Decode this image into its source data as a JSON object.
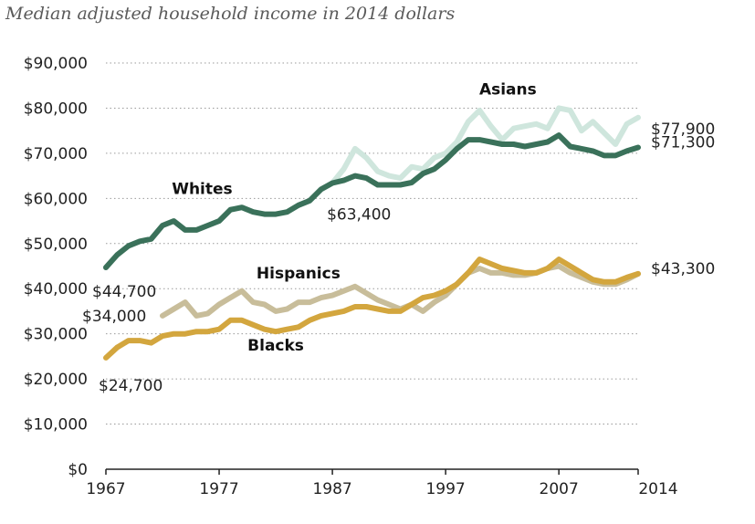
{
  "chart_data": {
    "type": "line",
    "title": "Median adjusted household income in 2014 dollars",
    "xlabel": "",
    "ylabel": "",
    "xlim": [
      1967,
      2014
    ],
    "ylim": [
      0,
      90000
    ],
    "x_ticks": [
      "1967",
      "1977",
      "1987",
      "1997",
      "2007",
      "2014"
    ],
    "y_ticks": [
      {
        "value": 0,
        "label": "$0"
      },
      {
        "value": 10000,
        "label": "$10,000"
      },
      {
        "value": 20000,
        "label": "$20,000"
      },
      {
        "value": 30000,
        "label": "$30,000"
      },
      {
        "value": 40000,
        "label": "$40,000"
      },
      {
        "value": 50000,
        "label": "$50,000"
      },
      {
        "value": 60000,
        "label": "$60,000"
      },
      {
        "value": 70000,
        "label": "$70,000"
      },
      {
        "value": 80000,
        "label": "$80,000"
      },
      {
        "value": 90000,
        "label": "$90,000"
      }
    ],
    "grid": true,
    "series": [
      {
        "name": "Asians",
        "color": "#cfe6dd",
        "points": [
          [
            1987,
            63400
          ],
          [
            1988,
            66500
          ],
          [
            1989,
            71000
          ],
          [
            1990,
            69000
          ],
          [
            1991,
            66000
          ],
          [
            1992,
            65000
          ],
          [
            1993,
            64500
          ],
          [
            1994,
            67000
          ],
          [
            1995,
            66500
          ],
          [
            1996,
            69000
          ],
          [
            1997,
            70000
          ],
          [
            1998,
            72500
          ],
          [
            1999,
            77000
          ],
          [
            2000,
            79500
          ],
          [
            2001,
            76000
          ],
          [
            2002,
            73000
          ],
          [
            2003,
            75500
          ],
          [
            2004,
            76000
          ],
          [
            2005,
            76500
          ],
          [
            2006,
            75500
          ],
          [
            2007,
            80000
          ],
          [
            2008,
            79500
          ],
          [
            2009,
            75000
          ],
          [
            2010,
            77000
          ],
          [
            2011,
            74500
          ],
          [
            2012,
            72000
          ],
          [
            2013,
            76500
          ],
          [
            2014,
            77900
          ]
        ]
      },
      {
        "name": "Whites",
        "color": "#3a715a",
        "points": [
          [
            1967,
            44700
          ],
          [
            1968,
            47500
          ],
          [
            1969,
            49500
          ],
          [
            1970,
            50500
          ],
          [
            1971,
            51000
          ],
          [
            1972,
            54000
          ],
          [
            1973,
            55000
          ],
          [
            1974,
            53000
          ],
          [
            1975,
            53000
          ],
          [
            1976,
            54000
          ],
          [
            1977,
            55000
          ],
          [
            1978,
            57500
          ],
          [
            1979,
            58000
          ],
          [
            1980,
            57000
          ],
          [
            1981,
            56500
          ],
          [
            1982,
            56500
          ],
          [
            1983,
            57000
          ],
          [
            1984,
            58500
          ],
          [
            1985,
            59500
          ],
          [
            1986,
            62000
          ],
          [
            1987,
            63400
          ],
          [
            1988,
            64000
          ],
          [
            1989,
            65000
          ],
          [
            1990,
            64500
          ],
          [
            1991,
            63000
          ],
          [
            1992,
            63000
          ],
          [
            1993,
            63000
          ],
          [
            1994,
            63500
          ],
          [
            1995,
            65500
          ],
          [
            1996,
            66500
          ],
          [
            1997,
            68500
          ],
          [
            1998,
            71000
          ],
          [
            1999,
            73000
          ],
          [
            2000,
            73000
          ],
          [
            2001,
            72500
          ],
          [
            2002,
            72000
          ],
          [
            2003,
            72000
          ],
          [
            2004,
            71500
          ],
          [
            2005,
            72000
          ],
          [
            2006,
            72500
          ],
          [
            2007,
            74000
          ],
          [
            2008,
            71500
          ],
          [
            2009,
            71000
          ],
          [
            2010,
            70500
          ],
          [
            2011,
            69500
          ],
          [
            2012,
            69500
          ],
          [
            2013,
            70500
          ],
          [
            2014,
            71300
          ]
        ]
      },
      {
        "name": "Hispanics",
        "color": "#c8bd9a",
        "points": [
          [
            1972,
            34000
          ],
          [
            1973,
            35500
          ],
          [
            1974,
            37000
          ],
          [
            1975,
            34000
          ],
          [
            1976,
            34500
          ],
          [
            1977,
            36500
          ],
          [
            1978,
            38000
          ],
          [
            1979,
            39500
          ],
          [
            1980,
            37000
          ],
          [
            1981,
            36500
          ],
          [
            1982,
            35000
          ],
          [
            1983,
            35500
          ],
          [
            1984,
            37000
          ],
          [
            1985,
            37000
          ],
          [
            1986,
            38000
          ],
          [
            1987,
            38500
          ],
          [
            1988,
            39500
          ],
          [
            1989,
            40500
          ],
          [
            1990,
            39000
          ],
          [
            1991,
            37500
          ],
          [
            1992,
            36500
          ],
          [
            1993,
            35500
          ],
          [
            1994,
            36500
          ],
          [
            1995,
            35000
          ],
          [
            1996,
            37000
          ],
          [
            1997,
            38500
          ],
          [
            1998,
            41000
          ],
          [
            1999,
            43500
          ],
          [
            2000,
            44500
          ],
          [
            2001,
            43500
          ],
          [
            2002,
            43500
          ],
          [
            2003,
            43000
          ],
          [
            2004,
            43000
          ],
          [
            2005,
            43500
          ],
          [
            2006,
            44500
          ],
          [
            2007,
            45000
          ],
          [
            2008,
            43500
          ],
          [
            2009,
            42500
          ],
          [
            2010,
            41500
          ],
          [
            2011,
            41000
          ],
          [
            2012,
            41000
          ],
          [
            2013,
            42000
          ],
          [
            2014,
            43300
          ]
        ]
      },
      {
        "name": "Blacks",
        "color": "#d3a63e",
        "points": [
          [
            1967,
            24700
          ],
          [
            1968,
            27000
          ],
          [
            1969,
            28500
          ],
          [
            1970,
            28500
          ],
          [
            1971,
            28000
          ],
          [
            1972,
            29500
          ],
          [
            1973,
            30000
          ],
          [
            1974,
            30000
          ],
          [
            1975,
            30500
          ],
          [
            1976,
            30500
          ],
          [
            1977,
            31000
          ],
          [
            1978,
            33000
          ],
          [
            1979,
            33000
          ],
          [
            1980,
            32000
          ],
          [
            1981,
            31000
          ],
          [
            1982,
            30500
          ],
          [
            1983,
            31000
          ],
          [
            1984,
            31500
          ],
          [
            1985,
            33000
          ],
          [
            1986,
            34000
          ],
          [
            1987,
            34500
          ],
          [
            1988,
            35000
          ],
          [
            1989,
            36000
          ],
          [
            1990,
            36000
          ],
          [
            1991,
            35500
          ],
          [
            1992,
            35000
          ],
          [
            1993,
            35000
          ],
          [
            1994,
            36500
          ],
          [
            1995,
            38000
          ],
          [
            1996,
            38500
          ],
          [
            1997,
            39500
          ],
          [
            1998,
            41000
          ],
          [
            1999,
            43500
          ],
          [
            2000,
            46500
          ],
          [
            2001,
            45500
          ],
          [
            2002,
            44500
          ],
          [
            2003,
            44000
          ],
          [
            2004,
            43500
          ],
          [
            2005,
            43500
          ],
          [
            2006,
            44500
          ],
          [
            2007,
            46500
          ],
          [
            2008,
            45000
          ],
          [
            2009,
            43500
          ],
          [
            2010,
            42000
          ],
          [
            2011,
            41500
          ],
          [
            2012,
            41500
          ],
          [
            2013,
            42500
          ],
          [
            2014,
            43300
          ]
        ]
      }
    ],
    "annotations": [
      {
        "text": "$44,700",
        "x": 1967,
        "y": 44700
      },
      {
        "text": "$34,000",
        "x": 1972,
        "y": 34000
      },
      {
        "text": "$24,700",
        "x": 1967,
        "y": 24700
      },
      {
        "text": "$63,400",
        "x": 1987,
        "y": 63400
      },
      {
        "text": "$77,900",
        "x": 2014,
        "y": 77900
      },
      {
        "text": "$71,300",
        "x": 2014,
        "y": 71300
      },
      {
        "text": "$43,300",
        "x": 2014,
        "y": 43300
      }
    ]
  }
}
